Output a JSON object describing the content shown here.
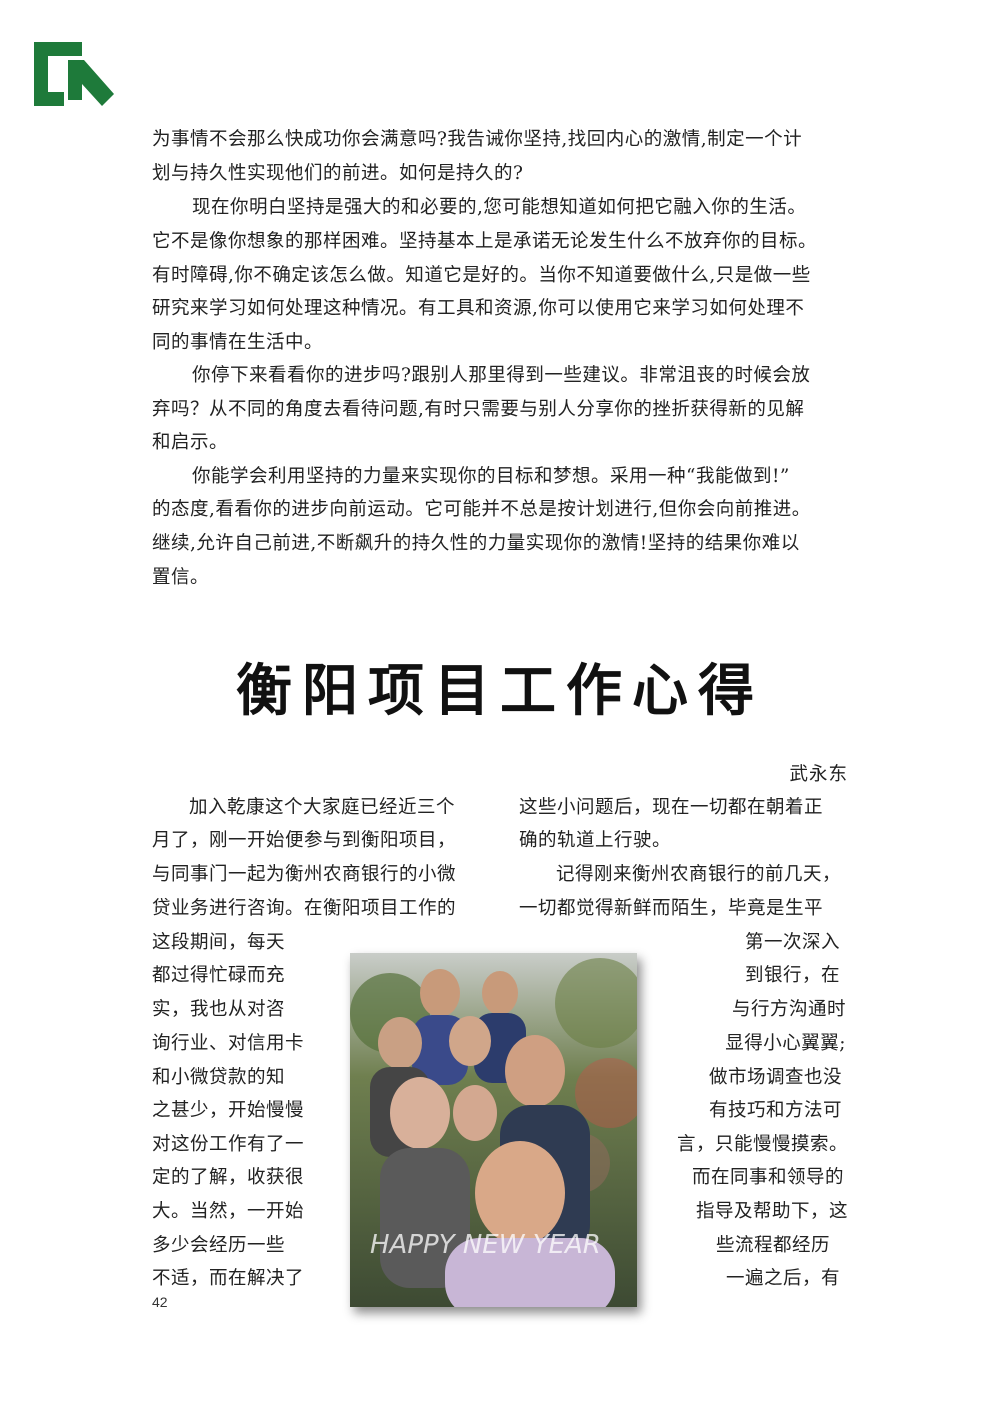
{
  "page": {
    "page_number": "42"
  },
  "intro": {
    "lines": [
      "为事情不会那么快成功你会满意吗?我告诫你坚持,找回内心的激情,制定一个计",
      "划与持久性实现他们的前进。如何是持久的?",
      "现在你明白坚持是强大的和必要的,您可能想知道如何把它融入你的生活。",
      "它不是像你想象的那样困难。坚持基本上是承诺无论发生什么不放弃你的目标。",
      "有时障碍,你不确定该怎么做。知道它是好的。当你不知道要做什么,只是做一些",
      "研究来学习如何处理这种情况。有工具和资源,你可以使用它来学习如何处理不",
      "同的事情在生活中。",
      "你停下来看看你的进步吗?跟别人那里得到一些建议。非常沮丧的时候会放",
      "弃吗？从不同的角度去看待问题,有时只需要与别人分享你的挫折获得新的见解",
      "和启示。",
      "你能学会利用坚持的力量来实现你的目标和梦想。采用一种“我能做到!”",
      "的态度,看看你的进步向前运动。它可能并不总是按计划进行,但你会向前推进。",
      "继续,允许自己前进,不断飙升的持久性的力量实现你的激情!坚持的结果你难以",
      "置信。"
    ]
  },
  "article": {
    "title": "衡阳项目工作心得",
    "author": "武永东",
    "left_column": [
      "加入乾康这个大家庭已经近三个",
      "月了，刚一开始便参与到衡阳项目，",
      "与同事门一起为衡州农商银行的小微",
      "贷业务进行咨询。在衡阳项目工作的",
      "这段期间，每天",
      "都过得忙碌而充",
      "实，我也从对咨",
      "询行业、对信用卡",
      "和小微贷款的知",
      "之甚少，开始慢慢",
      "对这份工作有了一",
      "定的了解，收获很",
      "大。当然，一开始",
      "多少会经历一些",
      "不适，而在解决了"
    ],
    "right_column": [
      "这些小问题后，现在一切都在朝着正",
      "确的轨道上行驶。",
      "记得刚来衡州农商银行的前几天，",
      "一切都觉得新鲜而陌生，毕竟是生平",
      "第一次深入",
      "到银行，在",
      "与行方沟通时",
      "显得小心翼翼;",
      "做市场调查也没",
      "有技巧和方法可",
      "言，只能慢慢摸索。",
      "而在同事和领导的",
      "指导及帮助下，这",
      "些流程都经历",
      "一遍之后，有"
    ],
    "photo_overlay_text": "HAPPY NEW YEAR"
  },
  "colors": {
    "logo_green": "#1e7a3a",
    "text": "#222222"
  },
  "icons": {
    "logo": "company-logo-icon"
  }
}
